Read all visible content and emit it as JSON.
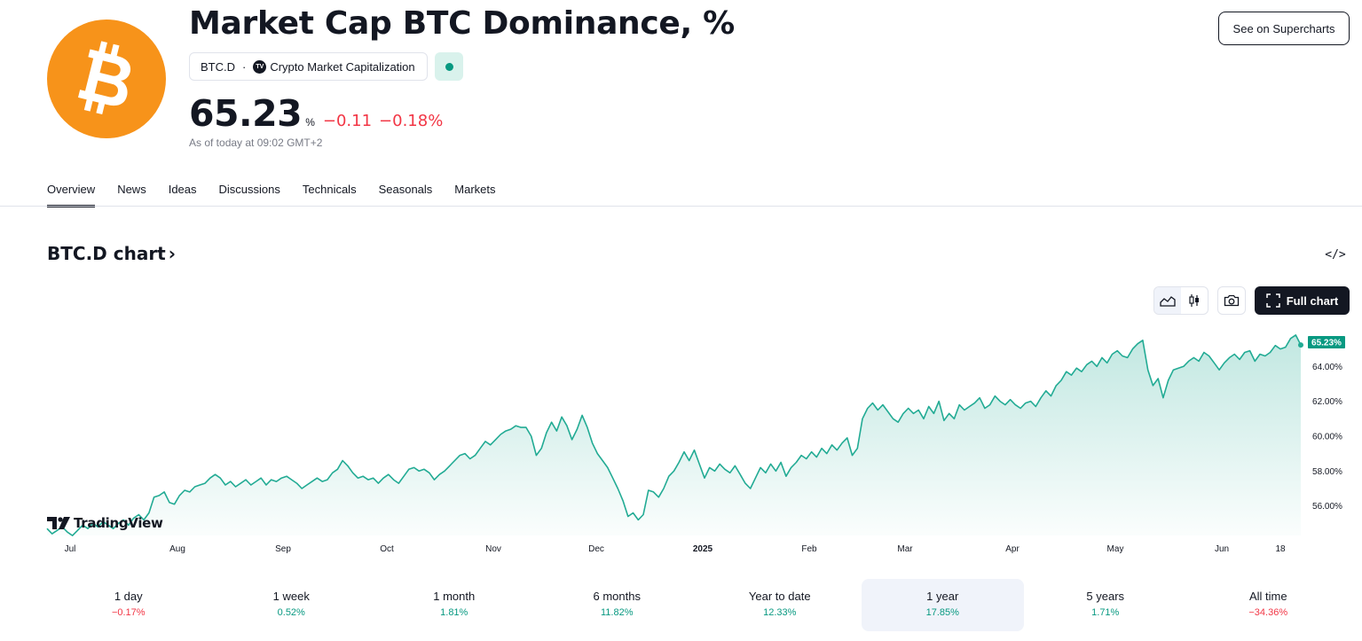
{
  "header": {
    "title": "Market Cap BTC Dominance, %",
    "logo_icon": "bitcoin-icon",
    "logo_color": "#f7931a",
    "ticker": "BTC.D",
    "separator": "·",
    "exchange": "Crypto Market Capitalization",
    "price": "65.23",
    "unit": "%",
    "change_abs": "−0.11",
    "change_pct": "−0.18%",
    "as_of": "As of today at 09:02 GMT+2",
    "supercharts_button": "See on Supercharts"
  },
  "tabs": [
    "Overview",
    "News",
    "Ideas",
    "Discussions",
    "Technicals",
    "Seasonals",
    "Markets"
  ],
  "active_tab": "Overview",
  "chart_section": {
    "title": "BTC.D chart",
    "title_chevron": "›",
    "embed_label": "</>",
    "fullchart_button": "Full chart",
    "watermark": "TradingView"
  },
  "chart_data": {
    "type": "area",
    "series": [
      {
        "values": [
          54.7,
          54.4,
          54.6,
          54.8,
          54.5,
          54.3,
          54.6,
          54.9,
          54.7,
          55.0,
          54.8,
          55.1,
          54.9,
          54.7,
          55.0,
          55.2,
          54.9,
          55.3,
          55.5,
          55.2,
          55.6,
          56.5,
          56.6,
          56.8,
          56.2,
          56.1,
          56.6,
          56.9,
          56.8,
          57.1,
          57.2,
          57.3,
          57.6,
          57.8,
          57.6,
          57.2,
          57.4,
          57.1,
          57.3,
          57.5,
          57.2,
          57.4,
          57.6,
          57.2,
          57.5,
          57.4,
          57.6,
          57.7,
          57.5,
          57.3,
          57.0,
          57.2,
          57.4,
          57.6,
          57.4,
          57.5,
          57.9,
          58.1,
          58.6,
          58.3,
          57.9,
          57.6,
          57.7,
          57.5,
          57.6,
          57.3,
          57.6,
          57.8,
          57.5,
          57.3,
          57.7,
          58.1,
          58.2,
          58.0,
          58.1,
          57.9,
          57.5,
          57.8,
          58.0,
          58.3,
          58.6,
          58.9,
          59.0,
          58.7,
          58.9,
          59.3,
          59.7,
          59.5,
          59.8,
          60.1,
          60.3,
          60.4,
          60.6,
          60.5,
          60.5,
          60.0,
          58.9,
          59.3,
          60.2,
          60.8,
          60.3,
          61.1,
          60.6,
          59.8,
          60.4,
          61.2,
          60.5,
          59.6,
          59.0,
          58.6,
          58.2,
          57.6,
          57.0,
          56.3,
          55.4,
          55.6,
          55.2,
          55.5,
          56.9,
          56.8,
          56.5,
          57.0,
          57.7,
          58.0,
          58.5,
          59.1,
          58.6,
          59.2,
          58.4,
          57.6,
          58.2,
          58.0,
          58.4,
          58.1,
          57.9,
          58.3,
          57.8,
          57.3,
          57.0,
          57.6,
          58.2,
          57.9,
          58.4,
          58.0,
          58.5,
          57.7,
          58.2,
          58.5,
          58.9,
          58.7,
          59.1,
          58.8,
          59.3,
          59.0,
          59.5,
          59.2,
          59.6,
          59.9,
          58.9,
          59.3,
          61.0,
          61.6,
          61.9,
          61.5,
          61.8,
          61.4,
          61.0,
          60.8,
          61.3,
          61.6,
          61.3,
          61.5,
          61.0,
          61.7,
          61.3,
          62.0,
          60.9,
          61.3,
          61.0,
          61.8,
          61.5,
          61.7,
          61.9,
          62.2,
          61.6,
          61.8,
          62.3,
          62.0,
          61.8,
          62.1,
          61.8,
          61.6,
          61.9,
          62.0,
          61.7,
          62.2,
          62.6,
          62.3,
          62.9,
          63.2,
          63.7,
          63.5,
          63.9,
          63.7,
          64.1,
          64.3,
          64.0,
          64.5,
          64.2,
          64.7,
          64.9,
          64.6,
          64.5,
          65.0,
          65.3,
          65.5,
          63.8,
          62.9,
          63.3,
          62.2,
          63.2,
          63.8,
          63.9,
          64.0,
          64.3,
          64.5,
          64.3,
          64.8,
          64.6,
          64.2,
          63.8,
          64.2,
          64.5,
          64.7,
          64.4,
          64.8,
          64.9,
          64.3,
          64.7,
          64.6,
          64.8,
          65.2,
          65.0,
          65.1,
          65.6,
          65.8,
          65.23
        ]
      }
    ],
    "x_axis_labels": [
      "Jul",
      "Aug",
      "Sep",
      "Oct",
      "Nov",
      "Dec",
      "2025",
      "Feb",
      "Mar",
      "Apr",
      "May",
      "Jun",
      "18"
    ],
    "y_axis_labels": [
      "64.00%",
      "62.00%",
      "60.00%",
      "58.00%",
      "56.00%"
    ],
    "ylim": [
      54.0,
      66.2
    ],
    "last_value_label": "65.23%",
    "line_color": "#22ab94",
    "label_color": "#089981",
    "grid": false
  },
  "periods": [
    {
      "label": "1 day",
      "value": "−0.17%",
      "dir": "neg"
    },
    {
      "label": "1 week",
      "value": "0.52%",
      "dir": "pos"
    },
    {
      "label": "1 month",
      "value": "1.81%",
      "dir": "pos"
    },
    {
      "label": "6 months",
      "value": "11.82%",
      "dir": "pos"
    },
    {
      "label": "Year to date",
      "value": "12.33%",
      "dir": "pos"
    },
    {
      "label": "1 year",
      "value": "17.85%",
      "dir": "pos",
      "active": true
    },
    {
      "label": "5 years",
      "value": "1.71%",
      "dir": "pos"
    },
    {
      "label": "All time",
      "value": "−34.36%",
      "dir": "neg"
    }
  ]
}
